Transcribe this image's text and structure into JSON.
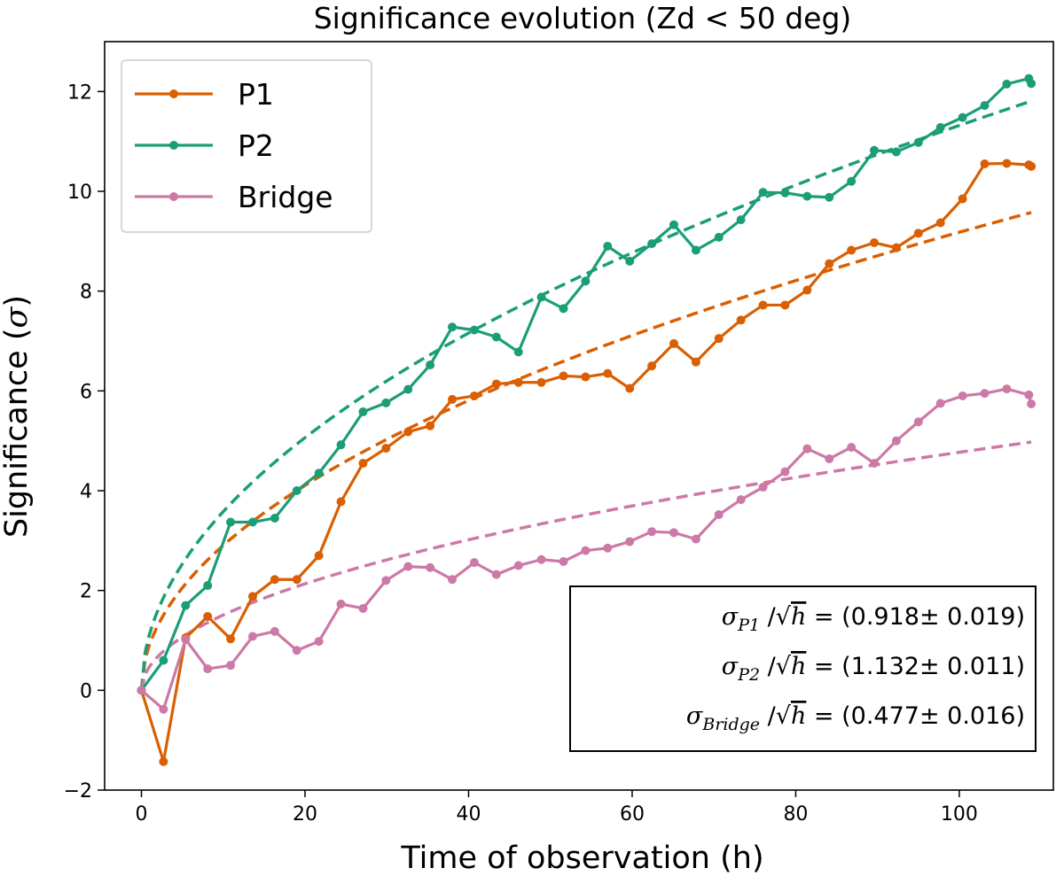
{
  "chart_data": {
    "type": "line",
    "title": "Significance evolution (Zd < 50 deg)",
    "xlabel": "Time of observation (h)",
    "ylabel_prefix": "Significance (",
    "ylabel_symbol": "σ",
    "ylabel_suffix": ")",
    "xlim": [
      -4.5,
      111.5
    ],
    "ylim": [
      -2,
      13
    ],
    "xticks": [
      0,
      20,
      40,
      60,
      80,
      100
    ],
    "xtick_labels": [
      "0",
      "20",
      "40",
      "60",
      "80",
      "100"
    ],
    "yticks": [
      -2,
      0,
      2,
      4,
      6,
      8,
      10,
      12
    ],
    "ytick_labels": [
      "−2",
      "0",
      "2",
      "4",
      "6",
      "8",
      "10",
      "12"
    ],
    "legend_position": "top-left",
    "series": [
      {
        "name": "P1",
        "color": "#d95f02",
        "fit_coefficient": 0.918,
        "x": [
          0,
          2.7,
          5.4,
          8.1,
          10.9,
          13.6,
          16.3,
          19.0,
          21.7,
          24.4,
          27.1,
          29.9,
          32.6,
          35.3,
          38.0,
          40.7,
          43.4,
          46.1,
          48.9,
          51.6,
          54.3,
          57.0,
          59.7,
          62.4,
          65.1,
          67.8,
          70.6,
          73.3,
          76.0,
          78.7,
          81.4,
          84.1,
          86.8,
          89.6,
          92.3,
          95.0,
          97.7,
          100.4,
          103.1,
          105.8,
          108.5,
          108.8
        ],
        "y": [
          0,
          -1.43,
          1.05,
          1.48,
          1.03,
          1.88,
          2.22,
          2.22,
          2.7,
          3.78,
          4.55,
          4.85,
          5.18,
          5.3,
          5.83,
          5.9,
          6.14,
          6.17,
          6.17,
          6.3,
          6.28,
          6.35,
          6.05,
          6.5,
          6.95,
          6.58,
          7.05,
          7.42,
          7.72,
          7.72,
          8.02,
          8.55,
          8.82,
          8.97,
          8.87,
          9.16,
          9.37,
          9.85,
          10.55,
          10.56,
          10.53,
          10.5
        ]
      },
      {
        "name": "P2",
        "color": "#1b9e77",
        "fit_coefficient": 1.132,
        "x": [
          0,
          2.7,
          5.4,
          8.1,
          10.9,
          13.6,
          16.3,
          19.0,
          21.7,
          24.4,
          27.1,
          29.9,
          32.6,
          35.3,
          38.0,
          40.7,
          43.4,
          46.1,
          48.9,
          51.6,
          54.3,
          57.0,
          59.7,
          62.4,
          65.1,
          67.8,
          70.6,
          73.3,
          76.0,
          78.7,
          81.4,
          84.1,
          86.8,
          89.6,
          92.3,
          95.0,
          97.7,
          100.4,
          103.1,
          105.8,
          108.5,
          108.8
        ],
        "y": [
          0,
          0.6,
          1.7,
          2.1,
          3.37,
          3.37,
          3.45,
          4.0,
          4.35,
          4.92,
          5.58,
          5.76,
          6.03,
          6.52,
          7.28,
          7.22,
          7.08,
          6.78,
          7.88,
          7.65,
          8.2,
          8.9,
          8.6,
          8.95,
          9.33,
          8.82,
          9.08,
          9.43,
          9.98,
          9.97,
          9.9,
          9.88,
          10.2,
          10.82,
          10.79,
          10.98,
          11.28,
          11.48,
          11.72,
          12.15,
          12.26,
          12.16
        ]
      },
      {
        "name": "Bridge",
        "color": "#cc79a7",
        "fit_coefficient": 0.477,
        "x": [
          0,
          2.7,
          5.4,
          8.1,
          10.9,
          13.6,
          16.3,
          19.0,
          21.7,
          24.4,
          27.1,
          29.9,
          32.6,
          35.3,
          38.0,
          40.7,
          43.4,
          46.1,
          48.9,
          51.6,
          54.3,
          57.0,
          59.7,
          62.4,
          65.1,
          67.8,
          70.6,
          73.3,
          76.0,
          78.7,
          81.4,
          84.1,
          86.8,
          89.6,
          92.3,
          95.0,
          97.7,
          100.4,
          103.1,
          105.8,
          108.5,
          108.8
        ],
        "y": [
          0,
          -0.38,
          1.02,
          0.43,
          0.5,
          1.08,
          1.18,
          0.8,
          0.98,
          1.73,
          1.64,
          2.2,
          2.48,
          2.46,
          2.22,
          2.56,
          2.32,
          2.5,
          2.62,
          2.58,
          2.8,
          2.85,
          2.98,
          3.18,
          3.16,
          3.03,
          3.52,
          3.82,
          4.07,
          4.38,
          4.84,
          4.64,
          4.87,
          4.55,
          5.0,
          5.38,
          5.75,
          5.9,
          5.95,
          6.04,
          5.92,
          5.74
        ]
      }
    ],
    "fit_line": {
      "style": "dashed",
      "function": "coefficient * sqrt(hours)",
      "x_range": [
        0,
        108.8
      ]
    },
    "fit_stats": [
      {
        "symbol": "σ",
        "subscript": "P1",
        "text": " = (0.918± 0.019)"
      },
      {
        "symbol": "σ",
        "subscript": "P2",
        "text": " = (1.132± 0.011)"
      },
      {
        "symbol": "σ",
        "subscript": "Bridge",
        "text": " = (0.477± 0.016)"
      }
    ],
    "fit_stats_denominator": "h"
  }
}
